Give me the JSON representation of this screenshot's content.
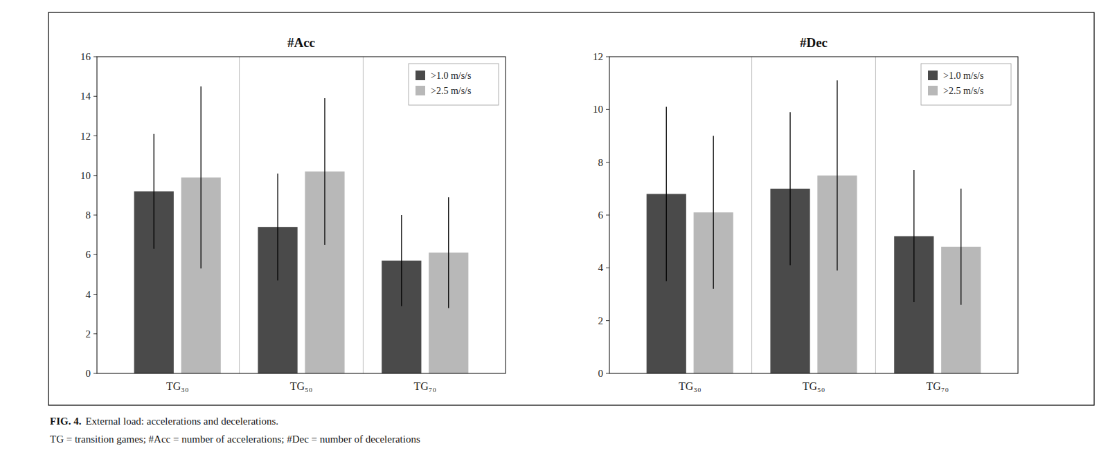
{
  "chart_data": [
    {
      "type": "bar",
      "title": "#Acc",
      "categories": [
        "TG₃₀",
        "TG₅₀",
        "TG₇₀"
      ],
      "series": [
        {
          "name": ">1.0 m/s/s",
          "color": "#4a4a4a",
          "values": [
            9.2,
            7.4,
            5.7
          ],
          "errors": [
            2.9,
            2.7,
            2.3
          ]
        },
        {
          "name": ">2.5 m/s/s",
          "color": "#b8b8b8",
          "values": [
            9.9,
            10.2,
            6.1
          ],
          "errors": [
            4.6,
            3.7,
            2.8
          ]
        }
      ],
      "ylim": [
        0,
        16
      ],
      "yticks": [
        0,
        2,
        4,
        6,
        8,
        10,
        12,
        14,
        16
      ],
      "grid": false,
      "legend": "upper-right"
    },
    {
      "type": "bar",
      "title": "#Dec",
      "categories": [
        "TG₃₀",
        "TG₅₀",
        "TG₇₀"
      ],
      "series": [
        {
          "name": ">1.0 m/s/s",
          "color": "#4a4a4a",
          "values": [
            6.8,
            7.0,
            5.2
          ],
          "errors": [
            3.3,
            2.9,
            2.5
          ]
        },
        {
          "name": ">2.5 m/s/s",
          "color": "#b8b8b8",
          "values": [
            6.1,
            7.5,
            4.8
          ],
          "errors": [
            2.9,
            3.6,
            2.2
          ]
        }
      ],
      "ylim": [
        0,
        12
      ],
      "yticks": [
        0,
        2,
        4,
        6,
        8,
        10,
        12
      ],
      "grid": false,
      "legend": "upper-right"
    }
  ],
  "caption_label": "FIG. 4.",
  "caption": "External load: accelerations and decelerations.",
  "note": "TG = transition games; #Acc = number of accelerations; #Dec = number of decelerations"
}
